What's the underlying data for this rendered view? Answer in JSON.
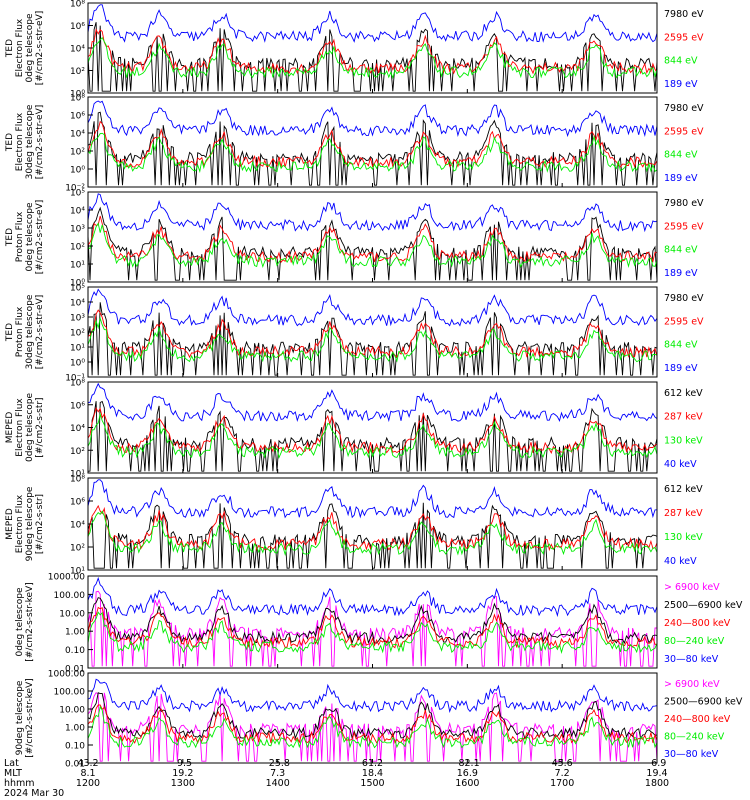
{
  "colors": {
    "black": "#000000",
    "red": "#ff0000",
    "green": "#00ee00",
    "blue": "#0000ff",
    "magenta": "#ff00ff"
  },
  "chart_data": [
    {
      "type": "line",
      "ylabel": [
        "TED",
        "Electron Flux",
        "0deg telescope",
        "[#/cm2-s-str-eV]"
      ],
      "yticks": [
        "10⁸",
        "10⁶",
        "10⁴",
        "10²",
        "10⁰"
      ],
      "ylim": [
        1,
        100000000
      ],
      "yscale": "log",
      "series": [
        {
          "name": "7980 eV",
          "color": "black"
        },
        {
          "name": "2595 eV",
          "color": "red"
        },
        {
          "name": "844 eV",
          "color": "green"
        },
        {
          "name": "189 eV",
          "color": "blue"
        }
      ]
    },
    {
      "type": "line",
      "ylabel": [
        "TED",
        "Electron Flux",
        "30deg telescope",
        "[#/cm2-s-str-eV]"
      ],
      "yticks": [
        "10⁸",
        "10⁶",
        "10⁴",
        "10²",
        "10⁰",
        "10⁻²"
      ],
      "ylim": [
        0.01,
        100000000
      ],
      "yscale": "log",
      "series": [
        {
          "name": "7980 eV",
          "color": "black"
        },
        {
          "name": "2595 eV",
          "color": "red"
        },
        {
          "name": "844 eV",
          "color": "green"
        },
        {
          "name": "189 eV",
          "color": "blue"
        }
      ]
    },
    {
      "type": "line",
      "ylabel": [
        "TED",
        "Proton Flux",
        "0deg telescope",
        "[#/cm2-s-str-eV]"
      ],
      "yticks": [
        "10⁵",
        "10⁴",
        "10³",
        "10²",
        "10¹",
        "10⁰"
      ],
      "ylim": [
        1,
        100000
      ],
      "yscale": "log",
      "series": [
        {
          "name": "7980 eV",
          "color": "black"
        },
        {
          "name": "2595 eV",
          "color": "red"
        },
        {
          "name": "844 eV",
          "color": "green"
        },
        {
          "name": "189 eV",
          "color": "blue"
        }
      ]
    },
    {
      "type": "line",
      "ylabel": [
        "TED",
        "Proton Flux",
        "30deg telescope",
        "[#/cm2-s-str-eV]"
      ],
      "yticks": [
        "10⁵",
        "10⁴",
        "10³",
        "10²",
        "10¹",
        "10⁰",
        "10⁻¹"
      ],
      "ylim": [
        0.1,
        100000
      ],
      "yscale": "log",
      "series": [
        {
          "name": "7980 eV",
          "color": "black"
        },
        {
          "name": "2595 eV",
          "color": "red"
        },
        {
          "name": "844 eV",
          "color": "green"
        },
        {
          "name": "189 eV",
          "color": "blue"
        }
      ]
    },
    {
      "type": "line",
      "ylabel": [
        "MEPED",
        "Electron Flux",
        "0deg telescope",
        "[#/cm2-s-str]"
      ],
      "yticks": [
        "10⁸",
        "10⁶",
        "10⁴",
        "10²",
        "10¹"
      ],
      "ylim": [
        10,
        100000000
      ],
      "yscale": "log",
      "series": [
        {
          "name": "612 keV",
          "color": "black"
        },
        {
          "name": "287 keV",
          "color": "red"
        },
        {
          "name": "130 keV",
          "color": "green"
        },
        {
          "name": "40 keV",
          "color": "blue"
        }
      ]
    },
    {
      "type": "line",
      "ylabel": [
        "MEPED",
        "Electron Flux",
        "90deg telescope",
        "[#/cm2-s-str]"
      ],
      "yticks": [
        "10⁸",
        "10⁶",
        "10⁴",
        "10²",
        "10¹"
      ],
      "ylim": [
        10,
        100000000
      ],
      "yscale": "log",
      "series": [
        {
          "name": "612 keV",
          "color": "black"
        },
        {
          "name": "287 keV",
          "color": "red"
        },
        {
          "name": "130 keV",
          "color": "green"
        },
        {
          "name": "40 keV",
          "color": "blue"
        }
      ]
    },
    {
      "type": "line",
      "ylabel": [
        "0deg telescope",
        "[#/cm2-s-str-keV]"
      ],
      "yticks": [
        "1000.00",
        "100.00",
        "10.00",
        "1.00",
        "0.10",
        "0.01"
      ],
      "ylim": [
        0.01,
        1000
      ],
      "yscale": "log",
      "series": [
        {
          "name": "> 6900 keV",
          "color": "magenta"
        },
        {
          "name": "2500—6900 keV",
          "color": "black"
        },
        {
          "name": "240—800 keV",
          "color": "red"
        },
        {
          "name": "80—240 keV",
          "color": "green"
        },
        {
          "name": "30—80 keV",
          "color": "blue"
        }
      ]
    },
    {
      "type": "line",
      "ylabel": [
        "90deg telescope",
        "[#/cm2-s-str-keV]"
      ],
      "yticks": [
        "1000.00",
        "100.00",
        "10.00",
        "1.00",
        "0.10",
        "0.01"
      ],
      "ylim": [
        0.01,
        1000
      ],
      "yscale": "log",
      "series": [
        {
          "name": "> 6900 keV",
          "color": "magenta"
        },
        {
          "name": "2500—6900 keV",
          "color": "black"
        },
        {
          "name": "240—800 keV",
          "color": "red"
        },
        {
          "name": "80—240 keV",
          "color": "green"
        },
        {
          "name": "30—80 keV",
          "color": "blue"
        }
      ]
    }
  ],
  "x_axis": {
    "rows": [
      "Lat",
      "MLT",
      "hhmm",
      "2024 Mar 30"
    ],
    "ticks": [
      {
        "lat": "43.2",
        "mlt": "8.1",
        "hhmm": "1200"
      },
      {
        "lat": "-9.5",
        "mlt": "19.2",
        "hhmm": "1300"
      },
      {
        "lat": "-25.8",
        "mlt": "7.3",
        "hhmm": "1400"
      },
      {
        "lat": "61.2",
        "mlt": "18.4",
        "hhmm": "1500"
      },
      {
        "lat": "-82.1",
        "mlt": "16.9",
        "hhmm": "1600"
      },
      {
        "lat": "45.6",
        "mlt": "7.2",
        "hhmm": "1700"
      },
      {
        "lat": "-6.9",
        "mlt": "19.4",
        "hhmm": "1800"
      }
    ]
  }
}
